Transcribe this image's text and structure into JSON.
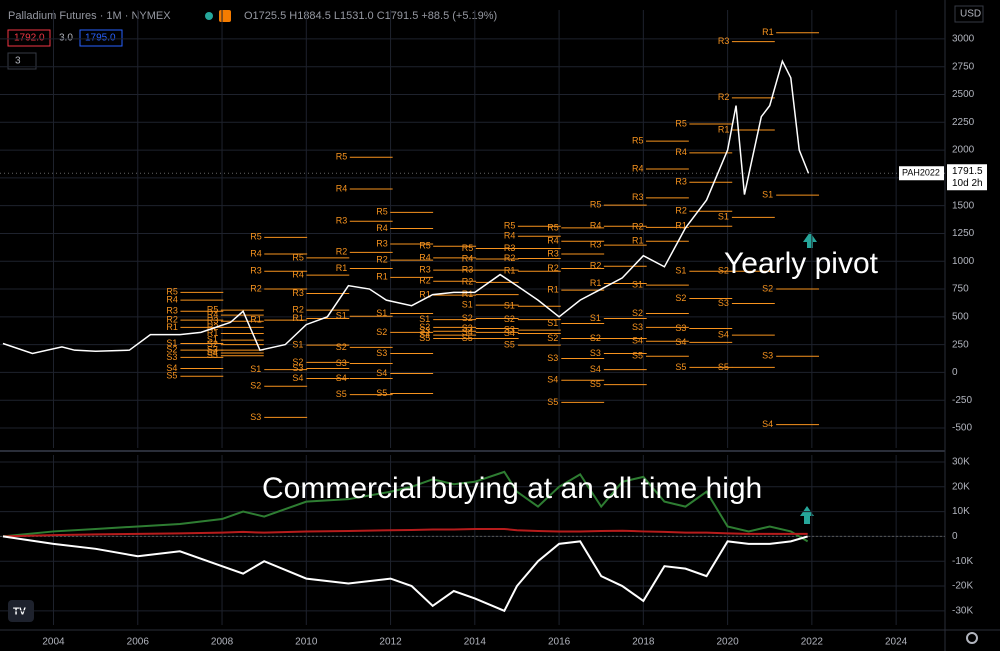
{
  "header": {
    "symbol": "Palladium Futures · 1M · NYMEX",
    "ohlc": "O1725.5 H1884.5 L1531.0 C1791.5 +88.5 (+5.19%)",
    "bid": "1792.0",
    "spread": "3.0",
    "ask": "1795.0",
    "indicators": "3",
    "currency": "USD"
  },
  "chart_data": [
    {
      "type": "line",
      "xlim": [
        2002.73,
        2025.16
      ],
      "xticks": [
        2004,
        2006,
        2008,
        2010,
        2012,
        2014,
        2016,
        2018,
        2020,
        2022,
        2024
      ],
      "ylim": [
        -680,
        3260
      ],
      "yticks": [
        -500,
        -250,
        0,
        250,
        500,
        750,
        1000,
        1250,
        1500,
        1750,
        2000,
        2250,
        2500,
        2750,
        3000
      ],
      "grid": true,
      "x": [
        2002.8,
        2003.5,
        2004.2,
        2004.5,
        2005,
        2005.8,
        2006.3,
        2007,
        2007.5,
        2008.2,
        2008.5,
        2008.9,
        2009.5,
        2010,
        2010.5,
        2011,
        2011.5,
        2011.9,
        2012.5,
        2013,
        2013.5,
        2014,
        2014.6,
        2015,
        2015.5,
        2016,
        2016.5,
        2017,
        2017.5,
        2018,
        2018.5,
        2019,
        2019.5,
        2020,
        2020.2,
        2020.4,
        2020.8,
        2021,
        2021.3,
        2021.5,
        2021.7,
        2021.92
      ],
      "series": [
        {
          "name": "PAH2022",
          "color": "#ffffff",
          "values": [
            260,
            170,
            230,
            200,
            190,
            200,
            340,
            340,
            360,
            450,
            550,
            200,
            250,
            430,
            500,
            780,
            750,
            650,
            600,
            700,
            720,
            720,
            880,
            780,
            650,
            500,
            650,
            750,
            850,
            1050,
            950,
            1300,
            1550,
            2000,
            2400,
            1600,
            2300,
            2400,
            2800,
            2650,
            2000,
            1791.5
          ]
        }
      ],
      "last_price": 1791.5,
      "countdown": "10d 2h",
      "pivot_color": "#f7931e",
      "pivot_labels": [
        "R5",
        "R4",
        "R3",
        "R2",
        "R1",
        "S1",
        "S2",
        "S3",
        "S4",
        "S5"
      ],
      "pivots": [
        {
          "start": 2006.68,
          "values": [
            720,
            650,
            550,
            470,
            405,
            260,
            200,
            135,
            35,
            -35
          ]
        },
        {
          "start": 2007.64,
          "values": [
            560,
            515,
            460,
            405,
            350,
            290,
            250,
            200,
            175,
            150
          ]
        },
        {
          "start": 2008.67,
          "values": [
            1215,
            1065,
            910,
            750,
            470,
            25,
            -125,
            -405,
            null,
            null
          ]
        },
        {
          "start": 2009.67,
          "values": [
            1030,
            875,
            710,
            560,
            485,
            245,
            90,
            35,
            -55,
            null
          ]
        },
        {
          "start": 2010.7,
          "values": [
            1935,
            1650,
            1360,
            1080,
            935,
            505,
            225,
            80,
            -55,
            -200
          ]
        },
        {
          "start": 2011.66,
          "values": [
            1440,
            1295,
            1155,
            1010,
            855,
            530,
            360,
            170,
            -10,
            -190
          ]
        },
        {
          "start": 2012.68,
          "values": [
            1135,
            1030,
            920,
            820,
            695,
            475,
            405,
            370,
            335,
            305
          ]
        },
        {
          "start": 2013.69,
          "values": [
            1115,
            1020,
            920,
            810,
            700,
            605,
            485,
            395,
            360,
            305
          ]
        },
        {
          "start": 2014.69,
          "values": [
            1315,
            1225,
            1115,
            1025,
            910,
            595,
            475,
            380,
            350,
            245
          ]
        },
        {
          "start": 2015.72,
          "values": [
            1300,
            1180,
            1065,
            935,
            740,
            440,
            305,
            125,
            -70,
            -270
          ]
        },
        {
          "start": 2016.73,
          "values": [
            1505,
            1315,
            1145,
            955,
            800,
            485,
            305,
            170,
            25,
            -110
          ]
        },
        {
          "start": 2017.73,
          "values": [
            2080,
            1830,
            1570,
            1305,
            1180,
            785,
            530,
            405,
            280,
            145
          ]
        },
        {
          "start": 2018.76,
          "values": [
            2235,
            1975,
            1710,
            1450,
            1315,
            910,
            665,
            395,
            270,
            45
          ]
        },
        {
          "start": 2019.77,
          "values": [
            null,
            null,
            2975,
            2470,
            2180,
            1395,
            910,
            620,
            335,
            45
          ]
        },
        {
          "start": 2020.82,
          "values": [
            null,
            null,
            null,
            null,
            3055,
            1595,
            750,
            145,
            -470,
            null
          ]
        }
      ],
      "annotations": [
        "Yearly pivot"
      ]
    },
    {
      "type": "line",
      "xlim": [
        2002.73,
        2025.16
      ],
      "ylim": [
        -35700,
        32800
      ],
      "yticks": [
        {
          "value": -30000,
          "label": "-30K"
        },
        {
          "value": -20000,
          "label": "-20K"
        },
        {
          "value": -10000,
          "label": "-10K"
        },
        0,
        {
          "value": 10000,
          "label": "10K"
        },
        {
          "value": 20000,
          "label": "20K"
        },
        {
          "value": 30000,
          "label": "30K"
        }
      ],
      "grid": true,
      "x": [
        2002.8,
        2004,
        2005,
        2006,
        2007,
        2008,
        2008.5,
        2009,
        2010,
        2011,
        2012,
        2012.5,
        2013,
        2013.5,
        2014,
        2014.7,
        2015,
        2015.5,
        2016,
        2016.5,
        2017,
        2017.5,
        2018,
        2018.5,
        2019,
        2019.5,
        2020,
        2020.5,
        2021,
        2021.5,
        2021.9
      ],
      "series": [
        {
          "color": "#2e7d32",
          "values": [
            0,
            2000,
            3000,
            4000,
            5000,
            7000,
            10000,
            8000,
            14000,
            15000,
            18000,
            20000,
            23000,
            21000,
            22000,
            26000,
            18000,
            12000,
            20000,
            25000,
            12000,
            22000,
            24000,
            14000,
            12000,
            18000,
            4000,
            2000,
            4000,
            2000,
            -2000
          ]
        },
        {
          "color": "#b71c1c",
          "values": [
            0,
            500,
            800,
            1000,
            1200,
            1500,
            1800,
            1500,
            2000,
            2200,
            2500,
            2600,
            2800,
            2800,
            3000,
            3000,
            2500,
            2200,
            2000,
            2000,
            2200,
            2300,
            2000,
            1800,
            1500,
            1500,
            1200,
            1000,
            1000,
            1000,
            1000
          ]
        },
        {
          "color": "#ffffff",
          "values": [
            0,
            -3000,
            -5000,
            -8000,
            -6000,
            -12000,
            -15000,
            -10000,
            -17000,
            -19000,
            -17000,
            -20000,
            -28000,
            -22000,
            -25000,
            -30000,
            -20000,
            -10000,
            -3000,
            -2000,
            -16000,
            -20000,
            -26000,
            -12000,
            -13000,
            -16000,
            -2000,
            -3000,
            -3000,
            -2000,
            0
          ]
        }
      ],
      "annotations": [
        "Commercial buying at an all time high"
      ]
    }
  ]
}
